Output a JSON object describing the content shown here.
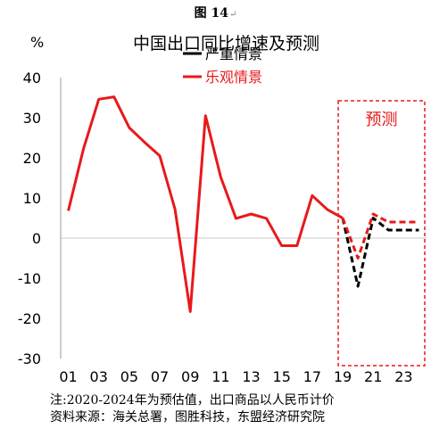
{
  "figure_label": "图 14",
  "notes": [
    "注:2020-2024年为预估值，出口商品以人民币计价",
    "资料来源：海关总署，图胜科技，东盟经济研究院"
  ],
  "colors": {
    "severe": "#000000",
    "optimistic": "#e8191b",
    "forecast_box": "#e8191b",
    "zero_line": "#c8c8c8",
    "axis": "#999999"
  },
  "chart_data": {
    "type": "line",
    "title": "中国出口同比增速及预测",
    "ylabel": "%",
    "xlabel": "",
    "ylim": [
      -30,
      40
    ],
    "yticks": [
      40,
      30,
      20,
      10,
      0,
      -10,
      -20,
      -30
    ],
    "ytick_labels": [
      "40",
      "30",
      "20",
      "10",
      "0",
      "-10",
      "-20",
      "-30"
    ],
    "x": [
      "01",
      "02",
      "03",
      "04",
      "05",
      "06",
      "07",
      "08",
      "09",
      "10",
      "11",
      "12",
      "13",
      "14",
      "15",
      "16",
      "17",
      "18",
      "19",
      "20",
      "21",
      "22",
      "23",
      "24"
    ],
    "xtick_labels": [
      "01",
      "03",
      "05",
      "07",
      "09",
      "11",
      "13",
      "15",
      "17",
      "19",
      "21",
      "23"
    ],
    "legend_position": "top-center",
    "grid": false,
    "forecast_label": "预测",
    "forecast_range": [
      "19",
      "24"
    ],
    "series": [
      {
        "name": "严重情景",
        "style": "dashed",
        "color": "#000000",
        "x": [
          "19",
          "20",
          "21",
          "22",
          "23",
          "24"
        ],
        "values": [
          5,
          -12,
          5,
          2,
          2,
          2
        ]
      },
      {
        "name": "乐观情景",
        "style": "solid",
        "color": "#e8191b",
        "x": [
          "01",
          "02",
          "03",
          "04",
          "05",
          "06",
          "07",
          "08",
          "09",
          "10",
          "11",
          "12",
          "13",
          "14",
          "15",
          "16",
          "17",
          "18",
          "19"
        ],
        "values": [
          6.8,
          22.3,
          34.6,
          35.2,
          27.5,
          23.9,
          20.5,
          7.2,
          -18.3,
          30.5,
          15.2,
          4.9,
          6.0,
          4.9,
          -1.9,
          -1.9,
          10.6,
          7.1,
          5.0
        ]
      },
      {
        "name": "乐观情景 预测",
        "style": "dashed",
        "color": "#e8191b",
        "x": [
          "19",
          "20",
          "21",
          "22",
          "23",
          "24"
        ],
        "values": [
          5,
          -5,
          6,
          4,
          4,
          4
        ]
      }
    ]
  }
}
